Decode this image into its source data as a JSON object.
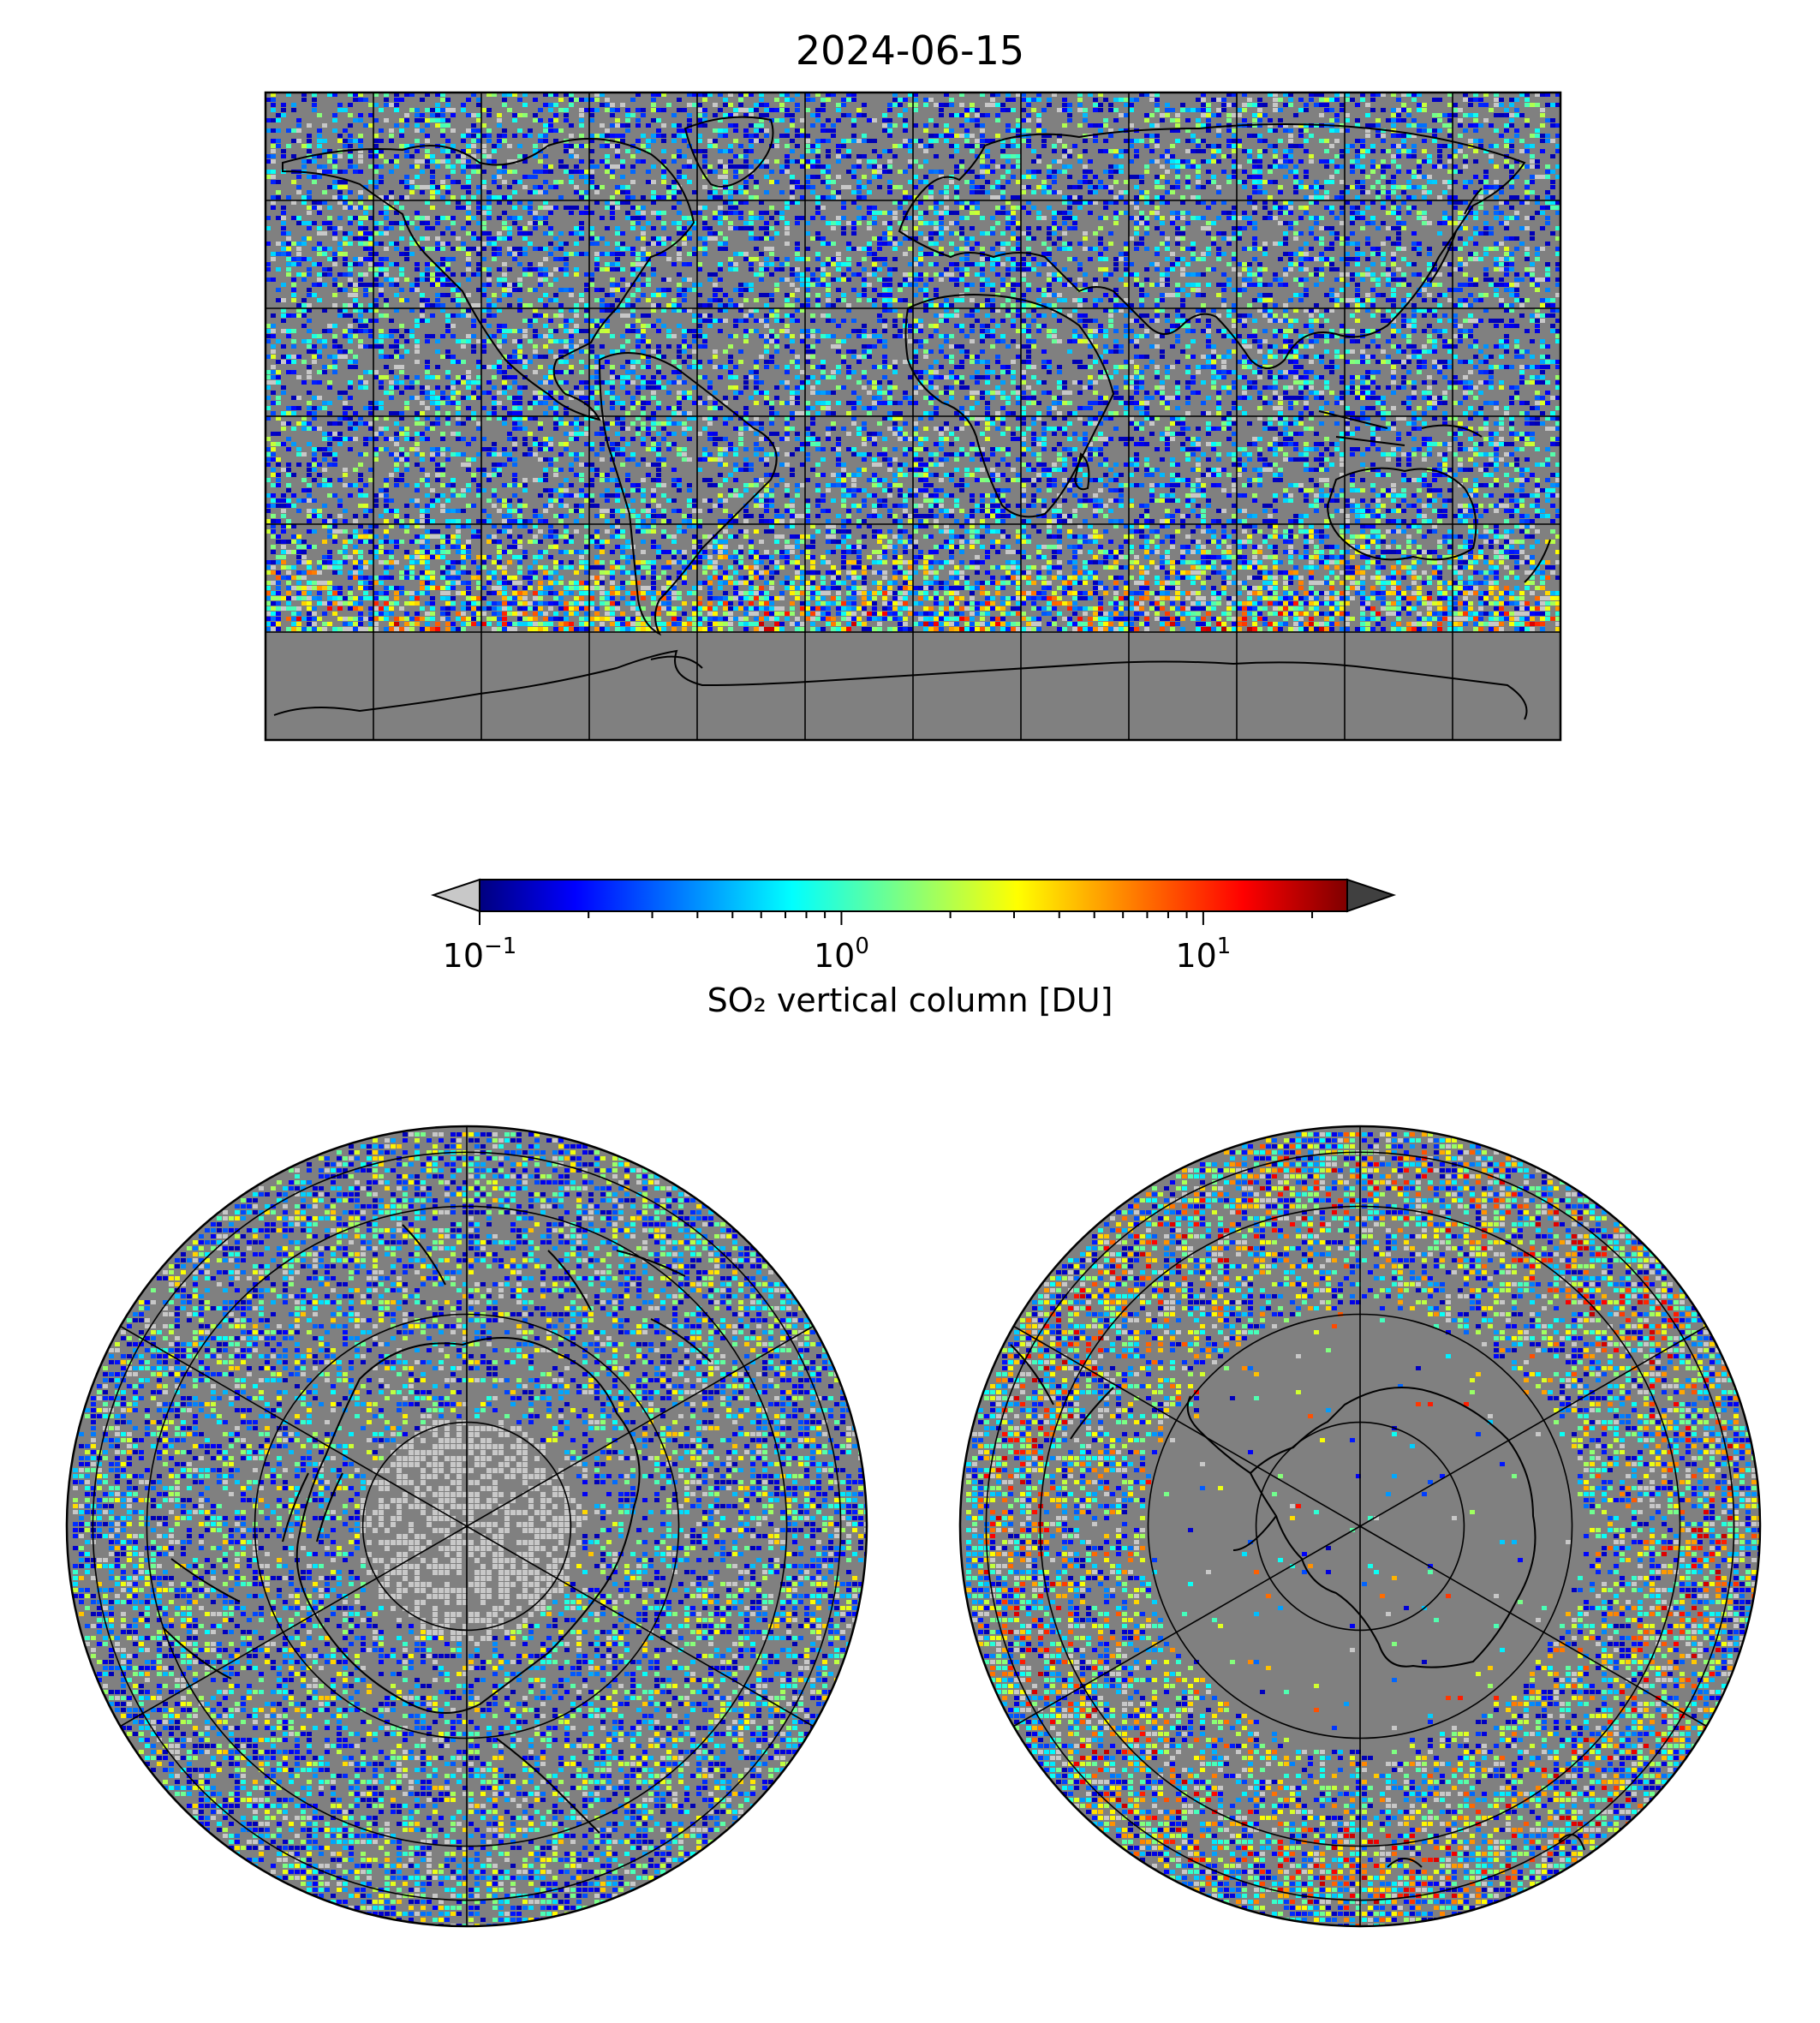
{
  "title": "2024-06-15",
  "colorbar": {
    "label": "SO₂ vertical column [DU]",
    "scale": "log",
    "range": [
      0.1,
      25
    ],
    "extend": "both",
    "under_color": "#c8c8c8",
    "over_color": "#404040",
    "colormap": "jet",
    "ticks": [
      {
        "base": "10",
        "exp": "−1",
        "value": 0.1
      },
      {
        "base": "10",
        "exp": "0",
        "value": 1
      },
      {
        "base": "10",
        "exp": "1",
        "value": 10
      }
    ]
  },
  "colors": {
    "land_ocean_nodata": "#808080",
    "coastline": "#000000",
    "gridline": "#000000"
  },
  "panels": {
    "global": {
      "projection": "plate-carree",
      "lon_range": [
        -180,
        180
      ],
      "lat_range": [
        -90,
        90
      ],
      "grid_step_deg": 30
    },
    "north_polar": {
      "projection": "north-polar-stereographic",
      "grid": true
    },
    "south_polar": {
      "projection": "south-polar-stereographic",
      "grid": true
    }
  }
}
